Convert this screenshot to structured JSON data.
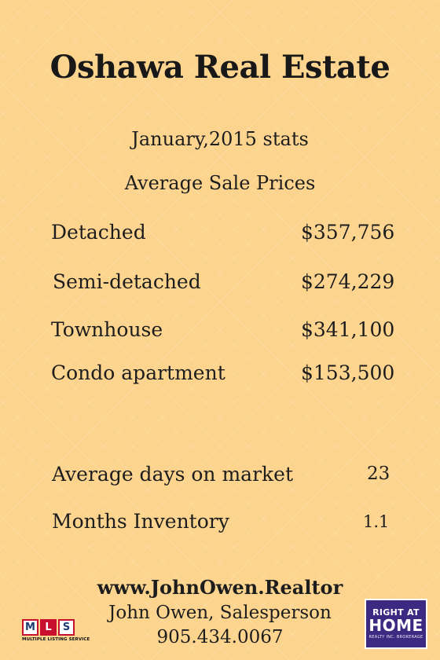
{
  "header": {
    "title": "Oshawa Real Estate",
    "period": "January,2015 stats",
    "section": "Average Sale Prices"
  },
  "prices": [
    {
      "label": "Detached",
      "value": "$357,756"
    },
    {
      "label": "Semi-detached",
      "value": "$274,229"
    },
    {
      "label": "Townhouse",
      "value": "$341,100"
    },
    {
      "label": "Condo apartment",
      "value": "$153,500"
    }
  ],
  "stats": [
    {
      "label": "Average days on market",
      "value": "23"
    },
    {
      "label": "Months Inventory",
      "value": "1.1"
    }
  ],
  "footer": {
    "website": "www.JohnOwen.Realtor",
    "name": "John Owen, Salesperson",
    "phone": "905.434.0067"
  },
  "logos": {
    "mls": {
      "letters": [
        "M",
        "L",
        "S"
      ],
      "tagline": "MULTIPLE LISTING SERVICE"
    },
    "brokerage": {
      "line1": "RIGHT AT",
      "line2": "HOME",
      "line3": "REALTY INC. BROKERAGE"
    }
  },
  "colors": {
    "background": "#fcd48e",
    "text": "#1d1d1d",
    "mls_red": "#c8102e",
    "brokerage_purple": "#3c2a82"
  }
}
